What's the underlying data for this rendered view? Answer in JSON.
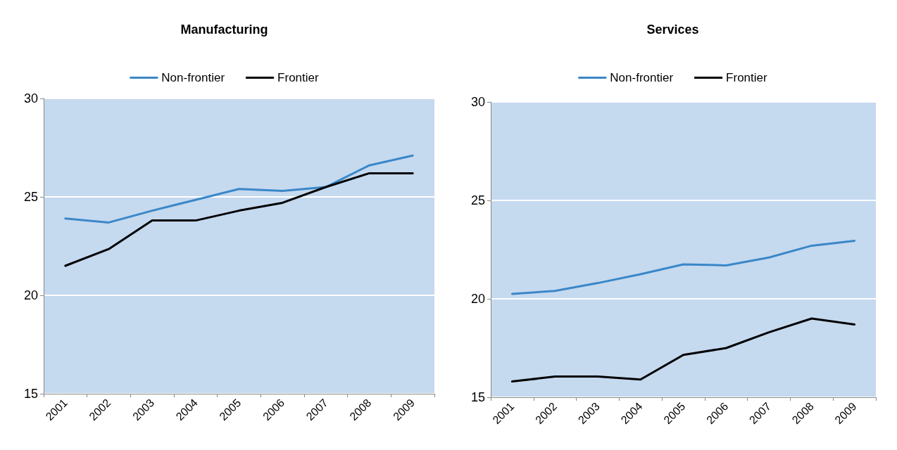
{
  "chart_data": [
    {
      "type": "line",
      "title": "Manufacturing",
      "categories": [
        "2001",
        "2002",
        "2003",
        "2004",
        "2005",
        "2006",
        "2007",
        "2008",
        "2009"
      ],
      "series": [
        {
          "name": "Non-frontier",
          "color": "#3a87c8",
          "values": [
            23.9,
            23.7,
            24.3,
            24.85,
            25.4,
            25.3,
            25.5,
            26.6,
            27.1
          ]
        },
        {
          "name": "Frontier",
          "color": "#000000",
          "values": [
            21.5,
            22.35,
            23.8,
            23.8,
            24.3,
            24.7,
            25.5,
            26.2,
            26.2
          ]
        }
      ],
      "ylim": [
        15,
        30
      ],
      "yticks": [
        15,
        20,
        25,
        30
      ],
      "grid": "y",
      "legend": "top",
      "marker": "none",
      "line_style": "solid"
    },
    {
      "type": "line",
      "title": "Services",
      "categories": [
        "2001",
        "2002",
        "2003",
        "2004",
        "2005",
        "2006",
        "2007",
        "2008",
        "2009"
      ],
      "series": [
        {
          "name": "Non-frontier",
          "color": "#3a87c8",
          "values": [
            20.25,
            20.4,
            20.8,
            21.25,
            21.75,
            21.7,
            22.1,
            22.7,
            22.95
          ]
        },
        {
          "name": "Frontier",
          "color": "#000000",
          "values": [
            15.8,
            16.05,
            16.05,
            15.9,
            17.15,
            17.5,
            18.3,
            19.0,
            18.7
          ]
        }
      ],
      "ylim": [
        15,
        30
      ],
      "yticks": [
        15,
        20,
        25,
        30
      ],
      "grid": "y",
      "legend": "top",
      "marker": "none",
      "line_style": "solid"
    }
  ]
}
